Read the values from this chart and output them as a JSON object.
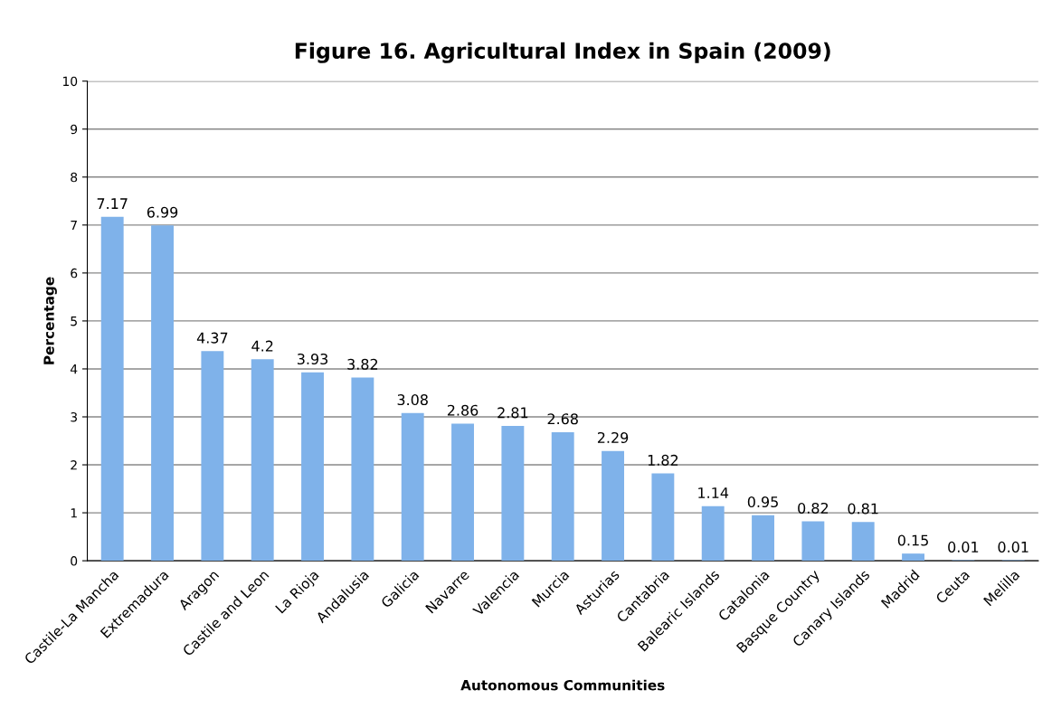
{
  "chart_data": {
    "type": "bar",
    "title": "Figure 16. Agricultural Index in Spain (2009)",
    "xlabel": "Autonomous Communities",
    "ylabel": "Percentage",
    "categories": [
      "Castile-La Mancha",
      "Extremadura",
      "Aragon",
      "Castile and Leon",
      "La Rioja",
      "Andalusia",
      "Galicia",
      "Navarre",
      "Valencia",
      "Murcia",
      "Asturias",
      "Cantabria",
      "Balearic Islands",
      "Catalonia",
      "Basque Country",
      "Canary Islands",
      "Madrid",
      "Ceuta",
      "Melilla"
    ],
    "values": [
      7.17,
      6.99,
      4.37,
      4.2,
      3.93,
      3.82,
      3.08,
      2.86,
      2.81,
      2.68,
      2.29,
      1.82,
      1.14,
      0.95,
      0.82,
      0.81,
      0.15,
      0.01,
      0.01
    ],
    "color": "#7fb2ea",
    "ylim": [
      0,
      10
    ],
    "yticks": [
      0,
      1,
      2,
      3,
      4,
      5,
      6,
      7,
      8,
      9,
      10
    ],
    "grid": "y",
    "data_labels": true
  }
}
